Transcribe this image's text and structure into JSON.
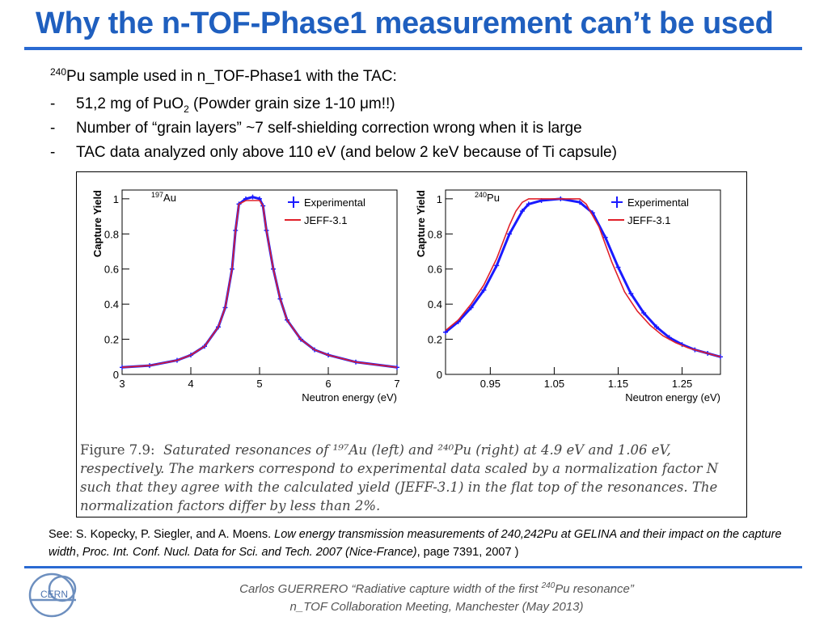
{
  "slide": {
    "title": "Why the n-TOF-Phase1 measurement can’t be used",
    "intro": {
      "sup": "240",
      "text": "Pu sample used in n_TOF-Phase1 with the TAC:"
    },
    "bullets": [
      {
        "dash": "-",
        "pre": "51,2 mg of PuO",
        "sub": "2",
        "post": " (Powder grain size 1-10 μm!!)"
      },
      {
        "dash": "-",
        "text": "Number of “grain layers” ~7 self-shielding correction wrong when it is large"
      },
      {
        "dash": "-",
        "text": "TAC data analyzed only above 110 eV (and below 2 keV because of Ti capsule)"
      }
    ],
    "caption": {
      "label": "Figure 7.9:",
      "lines": [
        "Saturated resonances of ¹⁹⁷Au (left) and ²⁴⁰Pu (right) at 4.9 eV and 1.06 eV,",
        "respectively.  The markers correspond to experimental data scaled by a normalization factor N",
        "such that they agree with the calculated yield (JEFF-3.1) in the flat top of the resonances.  The",
        "normalization factors differ by less than 2%."
      ]
    },
    "reference": {
      "prefix": "See: S. Kopecky, P. Siegler, and A. Moens. ",
      "italic": "Low energy transmission measurements of 240,242Pu at GELINA and their impact on the capture width",
      "middle": ", ",
      "italic2": "Proc. Int. Conf. Nucl. Data for Sci. and Tech. 2007 (Nice-France)",
      "suffix": ", page 7391, 2007 )"
    },
    "footer": {
      "line1_pre": "Carlos GUERRERO “Radiative capture width of the first ",
      "line1_sup": "240",
      "line1_post": "Pu resonance”",
      "line2": "n_TOF Collaboration Meeting, Manchester (May 2013)"
    },
    "logo_text": "CERN"
  },
  "colors": {
    "title": "#1f5fbf",
    "rule": "#2a6ad2",
    "experimental": "#1a1aff",
    "jeff": "#e0202a"
  },
  "chart_data": [
    {
      "type": "line",
      "isotope_label": {
        "sup": "197",
        "text": "Au"
      },
      "xlabel": "Neutron energy (eV)",
      "ylabel": "Capture Yield",
      "xlim": [
        3,
        7
      ],
      "ylim": [
        0,
        1.05
      ],
      "xticks": [
        "3",
        "4",
        "5",
        "6",
        "7"
      ],
      "yticks": [
        "0",
        "0.2",
        "0.4",
        "0.6",
        "0.8",
        "1"
      ],
      "legend_position": "top-right",
      "series": [
        {
          "name": "Experimental",
          "x": [
            3.0,
            3.4,
            3.8,
            4.0,
            4.2,
            4.4,
            4.5,
            4.6,
            4.65,
            4.7,
            4.8,
            4.9,
            5.0,
            5.05,
            5.1,
            5.2,
            5.3,
            5.4,
            5.6,
            5.8,
            6.0,
            6.4,
            7.0
          ],
          "y": [
            0.04,
            0.05,
            0.08,
            0.11,
            0.16,
            0.27,
            0.38,
            0.6,
            0.82,
            0.97,
            1.0,
            1.01,
            1.0,
            0.96,
            0.82,
            0.6,
            0.43,
            0.31,
            0.2,
            0.14,
            0.11,
            0.07,
            0.04
          ]
        },
        {
          "name": "JEFF-3.1",
          "x": [
            3.0,
            3.4,
            3.8,
            4.0,
            4.2,
            4.4,
            4.5,
            4.6,
            4.65,
            4.7,
            4.8,
            4.9,
            5.0,
            5.05,
            5.1,
            5.2,
            5.3,
            5.4,
            5.6,
            5.8,
            6.0,
            6.4,
            7.0
          ],
          "y": [
            0.04,
            0.05,
            0.08,
            0.11,
            0.16,
            0.27,
            0.38,
            0.6,
            0.82,
            0.97,
            0.99,
            0.99,
            0.99,
            0.96,
            0.82,
            0.6,
            0.43,
            0.31,
            0.2,
            0.14,
            0.11,
            0.07,
            0.04
          ]
        }
      ]
    },
    {
      "type": "line",
      "isotope_label": {
        "sup": "240",
        "text": "Pu"
      },
      "xlabel": "Neutron energy (eV)",
      "ylabel": "Capture Yield",
      "xlim": [
        0.88,
        1.31
      ],
      "ylim": [
        0,
        1.05
      ],
      "xticks": [
        "0.95",
        "1.05",
        "1.15",
        "1.25"
      ],
      "yticks": [
        "0",
        "0.2",
        "0.4",
        "0.6",
        "0.8",
        "1"
      ],
      "legend_position": "top-right",
      "series": [
        {
          "name": "Experimental",
          "x": [
            0.88,
            0.9,
            0.92,
            0.94,
            0.96,
            0.98,
            1.0,
            1.01,
            1.03,
            1.06,
            1.09,
            1.11,
            1.13,
            1.15,
            1.17,
            1.19,
            1.21,
            1.23,
            1.25,
            1.27,
            1.29,
            1.31
          ],
          "y": [
            0.24,
            0.3,
            0.38,
            0.48,
            0.62,
            0.8,
            0.93,
            0.97,
            0.99,
            1.0,
            0.98,
            0.92,
            0.78,
            0.61,
            0.46,
            0.35,
            0.27,
            0.21,
            0.17,
            0.14,
            0.12,
            0.1
          ]
        },
        {
          "name": "JEFF-3.1",
          "x": [
            0.88,
            0.9,
            0.92,
            0.94,
            0.96,
            0.98,
            0.99,
            1.0,
            1.01,
            1.03,
            1.06,
            1.09,
            1.1,
            1.12,
            1.14,
            1.16,
            1.18,
            1.2,
            1.22,
            1.24,
            1.26,
            1.28,
            1.31
          ],
          "y": [
            0.25,
            0.31,
            0.4,
            0.51,
            0.66,
            0.85,
            0.93,
            0.98,
            1.0,
            1.0,
            1.0,
            1.0,
            0.97,
            0.84,
            0.64,
            0.47,
            0.36,
            0.28,
            0.22,
            0.18,
            0.15,
            0.13,
            0.1
          ]
        }
      ]
    }
  ]
}
